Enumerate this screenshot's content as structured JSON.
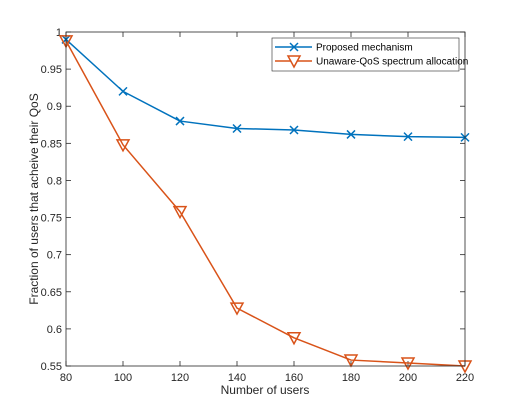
{
  "chart_data": {
    "type": "line",
    "x": [
      80,
      100,
      120,
      140,
      160,
      180,
      200,
      220
    ],
    "series": [
      {
        "name": "Proposed mechanism",
        "values": [
          0.99,
          0.92,
          0.88,
          0.87,
          0.868,
          0.862,
          0.859,
          0.858
        ],
        "color": "#0072BD",
        "marker": "x"
      },
      {
        "name": "Unaware-QoS spectrum allocation",
        "values": [
          0.988,
          0.848,
          0.758,
          0.628,
          0.588,
          0.558,
          0.554,
          0.55
        ],
        "color": "#D95319",
        "marker": "triangle-down"
      }
    ],
    "xlabel": "Number of users",
    "ylabel": "Fraction of users that acheive their QoS",
    "xlim": [
      80,
      220
    ],
    "ylim": [
      0.55,
      1
    ],
    "xticks": [
      80,
      100,
      120,
      140,
      160,
      180,
      200,
      220
    ],
    "xtick_labels": [
      "80",
      "100",
      "120",
      "140",
      "160",
      "180",
      "200",
      "220"
    ],
    "yticks": [
      0.55,
      0.6,
      0.65,
      0.7,
      0.75,
      0.8,
      0.85,
      0.9,
      0.95,
      1
    ],
    "ytick_labels": [
      "0.55",
      "0.6",
      "0.65",
      "0.7",
      "0.75",
      "0.8",
      "0.85",
      "0.9",
      "0.95",
      "1"
    ],
    "grid": false,
    "legend_position": "top-right"
  }
}
